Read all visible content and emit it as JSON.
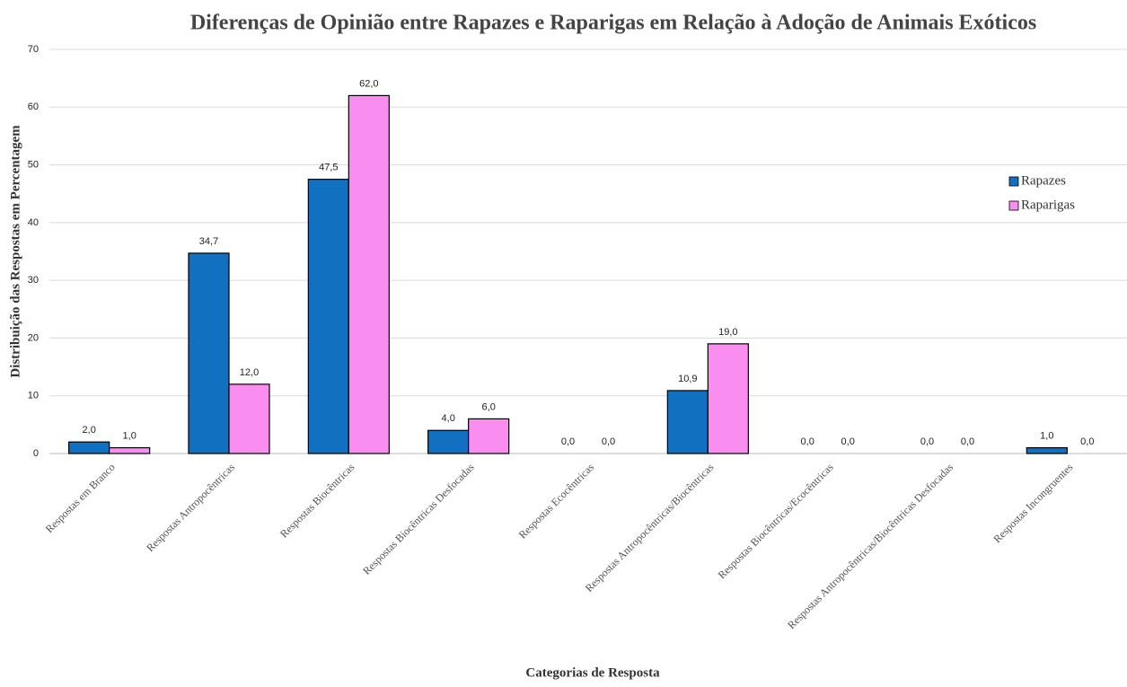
{
  "chart_data": {
    "type": "bar",
    "title": "Diferenças de Opinião entre Rapazes e Raparigas em Relação à Adoção de Animais Exóticos",
    "x_label": "Categorias de Resposta",
    "y_label": "Distribuição das Respostas em Percentagem",
    "categories": [
      "Respostas em Branco",
      "Respostas Antropocêntricas",
      "Respostas Biocêntricas",
      "Respostas Biocêntricas Desfocadas",
      "Respostas Ecocêntricas",
      "Respostas Antropocêntricas/Biocêntricas",
      "Respostas Biocêntricas/Ecocêntricas",
      "Respostas Antropocêntricas/Biocêntricas Desfocadas",
      "Respostas Incongruentes"
    ],
    "series": [
      {
        "name": "Rapazes",
        "color": "#1170c0",
        "values": [
          2.0,
          34.7,
          47.5,
          4.0,
          0.0,
          10.9,
          0.0,
          0.0,
          1.0
        ],
        "value_labels": [
          "2,0",
          "34,7",
          "47,5",
          "4,0",
          "0,0",
          "10,9",
          "0,0",
          "0,0",
          "1,0"
        ]
      },
      {
        "name": "Raparigas",
        "color": "#f98ef0",
        "values": [
          1.0,
          12.0,
          62.0,
          6.0,
          0.0,
          19.0,
          0.0,
          0.0,
          0.0
        ],
        "value_labels": [
          "1,0",
          "12,0",
          "62,0",
          "6,0",
          "0,0",
          "19,0",
          "0,0",
          "0,0",
          "0,0"
        ]
      }
    ],
    "ylim": [
      0,
      70
    ],
    "yticks": [
      0,
      10,
      20,
      30,
      40,
      50,
      60,
      70
    ],
    "grid": true,
    "legend": "right"
  }
}
